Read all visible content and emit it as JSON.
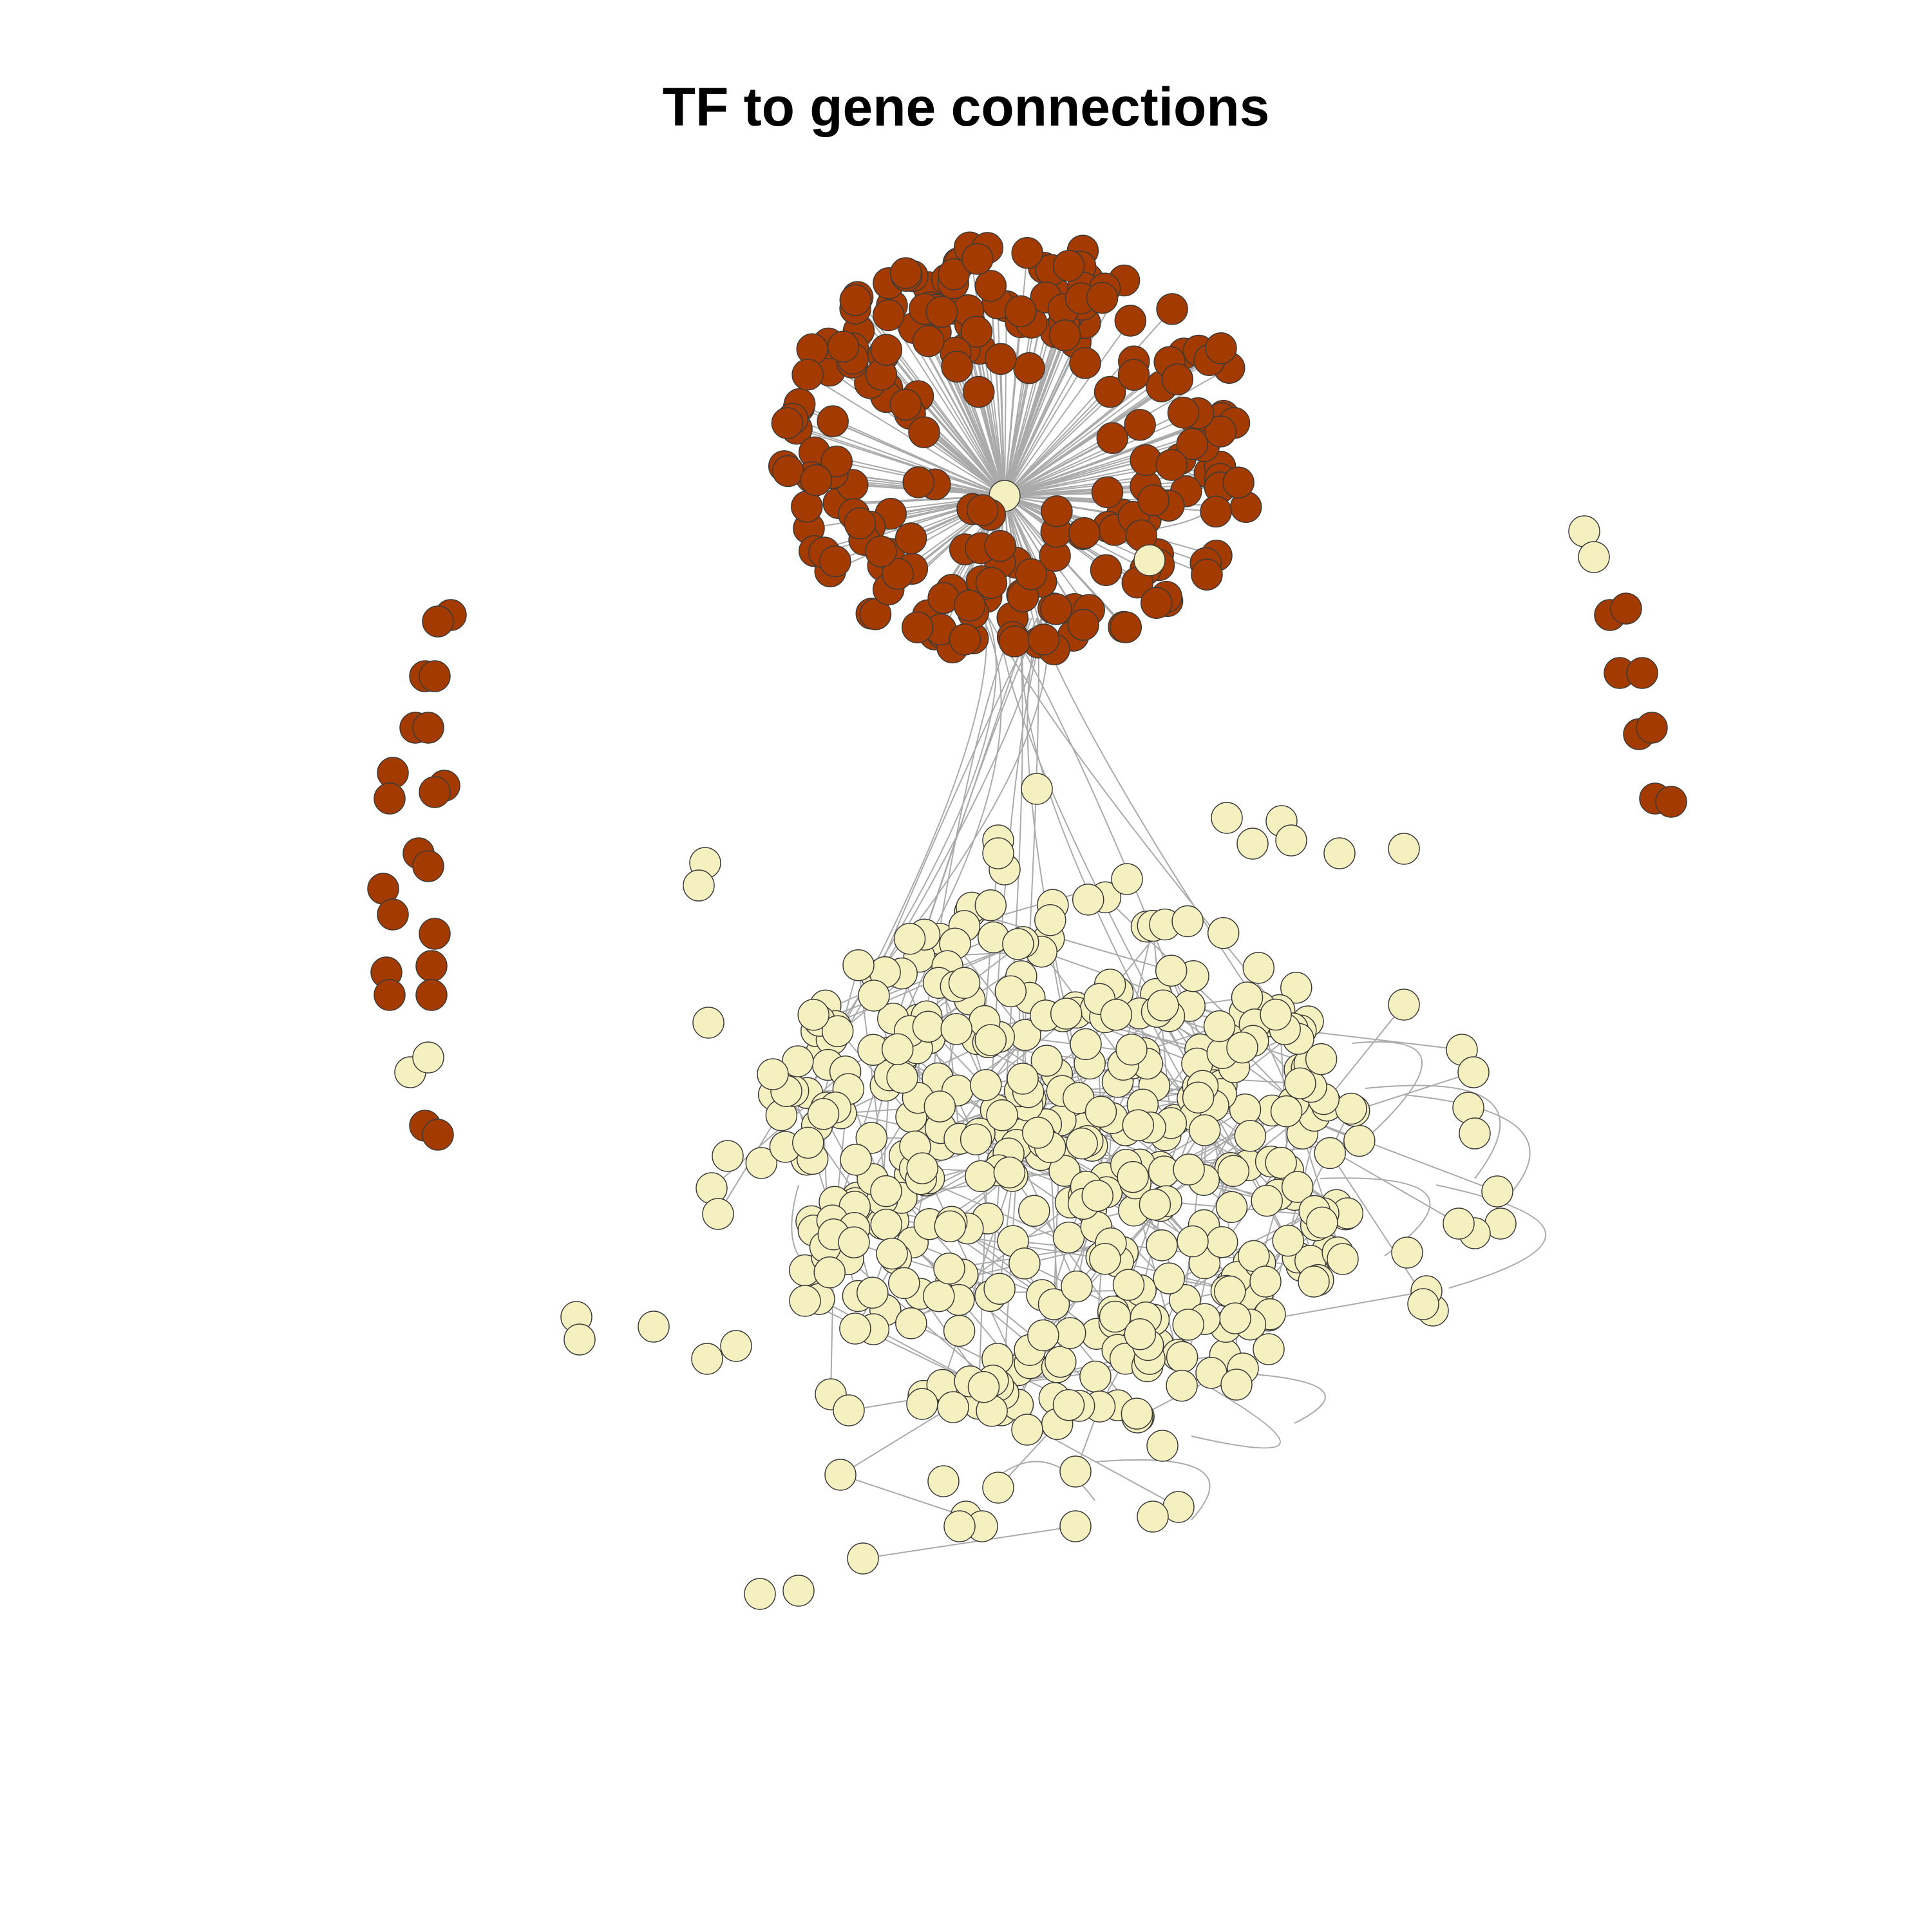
{
  "title": "TF to gene connections",
  "colors": {
    "tf_node": "#A33B00",
    "gene_node": "#F5F0C0",
    "node_border": "#3a3a3a",
    "edge": "#aaaaaa",
    "background": "#ffffff"
  },
  "node_types": [
    "tf",
    "gene"
  ]
}
